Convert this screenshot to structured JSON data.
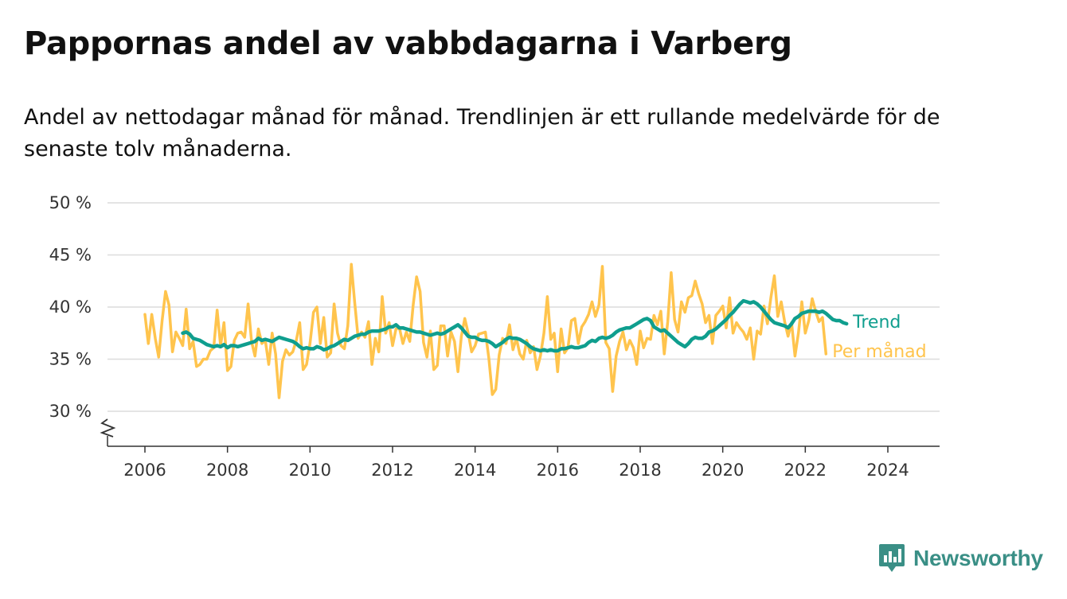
{
  "title": "Pappornas andel av vabbdagarna i Varberg",
  "subtitle": "Andel av nettodagar månad för månad. Trendlinjen är ett rullande medelvärde för de senaste tolv månaderna.",
  "brand": {
    "name": "Newsworthy",
    "icon": "newsworthy-logo-icon",
    "color": "#3a8f86"
  },
  "chart_data": {
    "type": "line",
    "title": "Pappornas andel av vabbdagarna i Varberg",
    "xlabel": "",
    "ylabel": "",
    "ylim": [
      30,
      50
    ],
    "xlim": [
      2005.5,
      2025.2
    ],
    "yticks": [
      30,
      35,
      40,
      45,
      50
    ],
    "ytick_labels": [
      "30 %",
      "35 %",
      "40 %",
      "45 %",
      "50 %"
    ],
    "xticks": [
      2006,
      2008,
      2010,
      2012,
      2014,
      2016,
      2018,
      2020,
      2022,
      2024
    ],
    "xtick_labels": [
      "2006",
      "2008",
      "2010",
      "2012",
      "2014",
      "2016",
      "2018",
      "2020",
      "2022",
      "2024"
    ],
    "grid": "horizontal",
    "axis_break": true,
    "series": [
      {
        "name": "Per månad",
        "color": "#ffc44d",
        "start": "2006-01",
        "values": [
          39.3,
          36.5,
          39.3,
          37.0,
          35.2,
          38.7,
          41.5,
          40.2,
          35.7,
          37.6,
          37.0,
          36.3,
          39.8,
          36.0,
          36.7,
          34.3,
          34.5,
          35.0,
          35.0,
          35.8,
          36.1,
          39.7,
          36.3,
          38.5,
          33.9,
          34.3,
          36.8,
          37.5,
          37.6,
          37.1,
          40.3,
          36.7,
          35.3,
          37.9,
          36.5,
          36.8,
          34.5,
          37.5,
          35.5,
          31.3,
          34.8,
          35.9,
          35.4,
          35.7,
          36.8,
          38.5,
          34.0,
          34.5,
          36.5,
          39.5,
          40.0,
          36.5,
          39.0,
          35.2,
          35.6,
          40.3,
          37.5,
          36.3,
          36.0,
          38.2,
          44.1,
          40.4,
          37.0,
          37.6,
          37.1,
          38.6,
          34.5,
          37.0,
          35.7,
          41.0,
          37.5,
          38.5,
          36.3,
          37.9,
          38.0,
          36.5,
          37.6,
          36.7,
          40.2,
          42.9,
          41.5,
          36.6,
          35.2,
          37.7,
          34.0,
          34.4,
          38.2,
          38.2,
          35.3,
          37.6,
          36.7,
          33.8,
          37.2,
          38.9,
          37.5,
          35.7,
          36.3,
          37.4,
          37.5,
          37.6,
          35.1,
          31.6,
          32.1,
          35.4,
          37.0,
          36.5,
          38.3,
          35.9,
          37.0,
          35.5,
          35.0,
          36.8,
          35.6,
          36.2,
          34.0,
          35.3,
          37.5,
          41.0,
          36.9,
          37.5,
          33.8,
          37.9,
          35.6,
          36.1,
          38.7,
          38.9,
          36.5,
          38.1,
          38.6,
          39.3,
          40.5,
          39.1,
          40.2,
          43.9,
          36.6,
          36.0,
          31.9,
          35.3,
          36.7,
          37.6,
          35.9,
          36.8,
          36.1,
          34.5,
          37.7,
          36.1,
          37.0,
          36.9,
          39.2,
          38.3,
          39.6,
          35.5,
          38.6,
          43.3,
          38.8,
          37.6,
          40.5,
          39.5,
          40.9,
          41.1,
          42.5,
          41.3,
          40.3,
          38.5,
          39.2,
          36.5,
          39.2,
          39.6,
          40.1,
          38.0,
          40.9,
          37.5,
          38.5,
          38.0,
          37.6,
          36.9,
          38.0,
          35.0,
          37.7,
          37.4,
          40.1,
          38.4,
          40.9,
          43.0,
          39.1,
          40.5,
          38.6,
          37.2,
          38.5,
          35.3,
          37.5,
          40.5,
          37.5,
          38.7,
          40.8,
          39.6,
          38.6,
          39.0,
          35.5
        ]
      },
      {
        "name": "Trend",
        "color": "#0f9e8e",
        "start": "2006-12",
        "values": [
          37.5,
          37.6,
          37.4,
          37.0,
          36.9,
          36.8,
          36.6,
          36.4,
          36.3,
          36.2,
          36.3,
          36.2,
          36.4,
          36.1,
          36.3,
          36.3,
          36.2,
          36.3,
          36.4,
          36.5,
          36.6,
          36.7,
          37.0,
          36.8,
          36.9,
          36.8,
          36.7,
          36.9,
          37.1,
          37.0,
          36.9,
          36.8,
          36.7,
          36.5,
          36.2,
          36.0,
          36.1,
          36.0,
          36.0,
          36.2,
          36.1,
          35.9,
          36.0,
          36.2,
          36.3,
          36.5,
          36.7,
          36.9,
          36.8,
          37.0,
          37.2,
          37.3,
          37.4,
          37.4,
          37.6,
          37.7,
          37.7,
          37.7,
          37.8,
          37.9,
          38.1,
          38.1,
          38.3,
          38.0,
          38.0,
          37.9,
          37.8,
          37.7,
          37.6,
          37.6,
          37.5,
          37.4,
          37.3,
          37.4,
          37.5,
          37.4,
          37.5,
          37.7,
          37.9,
          38.1,
          38.3,
          38.0,
          37.6,
          37.2,
          37.1,
          37.1,
          36.9,
          36.8,
          36.8,
          36.7,
          36.5,
          36.2,
          36.4,
          36.6,
          36.9,
          37.1,
          37.0,
          37.0,
          36.9,
          36.7,
          36.5,
          36.2,
          36.0,
          35.9,
          35.8,
          35.9,
          35.8,
          35.9,
          35.8,
          35.8,
          36.0,
          36.0,
          36.1,
          36.2,
          36.1,
          36.1,
          36.2,
          36.3,
          36.6,
          36.8,
          36.7,
          37.0,
          37.1,
          37.0,
          37.1,
          37.3,
          37.6,
          37.8,
          37.9,
          38.0,
          38.0,
          38.2,
          38.4,
          38.6,
          38.8,
          38.9,
          38.7,
          38.1,
          37.9,
          37.7,
          37.8,
          37.5,
          37.2,
          36.9,
          36.6,
          36.4,
          36.2,
          36.5,
          36.9,
          37.1,
          37.0,
          37.0,
          37.2,
          37.6,
          37.7,
          37.9,
          38.2,
          38.5,
          38.8,
          39.2,
          39.5,
          39.9,
          40.3,
          40.6,
          40.5,
          40.4,
          40.5,
          40.3,
          40.0,
          39.6,
          39.2,
          38.8,
          38.5,
          38.4,
          38.3,
          38.2,
          38.0,
          38.4,
          38.9,
          39.1,
          39.4,
          39.5,
          39.6,
          39.6,
          39.6,
          39.5,
          39.6,
          39.4,
          39.1,
          38.8,
          38.7,
          38.7,
          38.5,
          38.4
        ]
      }
    ]
  }
}
